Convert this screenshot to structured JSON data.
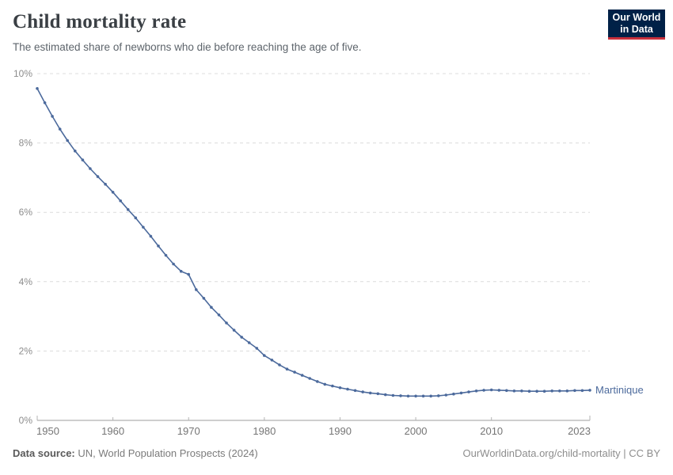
{
  "header": {
    "title": "Child mortality rate",
    "subtitle": "The estimated share of newborns who die before reaching the age of five.",
    "logo": {
      "line1": "Our World",
      "line2": "in Data"
    }
  },
  "chart_data": {
    "type": "line",
    "title": "Child mortality rate",
    "subtitle": "The estimated share of newborns who die before reaching the age of five.",
    "xlabel": "",
    "ylabel": "",
    "ylim": [
      0,
      10
    ],
    "yticks": [
      0,
      2,
      4,
      6,
      8,
      10
    ],
    "ytick_labels": [
      "0%",
      "2%",
      "4%",
      "6%",
      "8%",
      "10%"
    ],
    "xticks": [
      1950,
      1960,
      1970,
      1980,
      1990,
      2000,
      2010,
      2023
    ],
    "x_years": {
      "start": 1950,
      "end": 2023,
      "step": 1
    },
    "grid": "horizontal dashed",
    "legend": "line-end label",
    "series": [
      {
        "name": "Martinique",
        "color": "#4c6a9c",
        "values": [
          9.57,
          9.16,
          8.77,
          8.4,
          8.07,
          7.77,
          7.51,
          7.26,
          7.03,
          6.81,
          6.58,
          6.33,
          6.08,
          5.84,
          5.57,
          5.31,
          5.03,
          4.76,
          4.51,
          4.3,
          4.21,
          3.77,
          3.52,
          3.26,
          3.04,
          2.81,
          2.6,
          2.4,
          2.24,
          2.08,
          1.87,
          1.74,
          1.6,
          1.48,
          1.39,
          1.3,
          1.21,
          1.12,
          1.04,
          0.99,
          0.94,
          0.9,
          0.86,
          0.82,
          0.79,
          0.77,
          0.74,
          0.72,
          0.71,
          0.7,
          0.7,
          0.7,
          0.7,
          0.71,
          0.73,
          0.76,
          0.79,
          0.82,
          0.85,
          0.87,
          0.88,
          0.87,
          0.86,
          0.85,
          0.85,
          0.84,
          0.84,
          0.84,
          0.85,
          0.85,
          0.85,
          0.86,
          0.86,
          0.87
        ]
      }
    ]
  },
  "footer": {
    "source_label": "Data source:",
    "source_text": "UN, World Population Prospects (2024)",
    "credit": "OurWorldinData.org/child-mortality | CC BY"
  },
  "colors": {
    "line": "#4c6a9c",
    "grid": "#dcdcdc",
    "axis": "#9c9c9c",
    "tick": "#b3b3b3",
    "y_label": "#8c8c8c",
    "x_label": "#757575",
    "logo_bg": "#002147",
    "logo_red": "#c9303c"
  }
}
